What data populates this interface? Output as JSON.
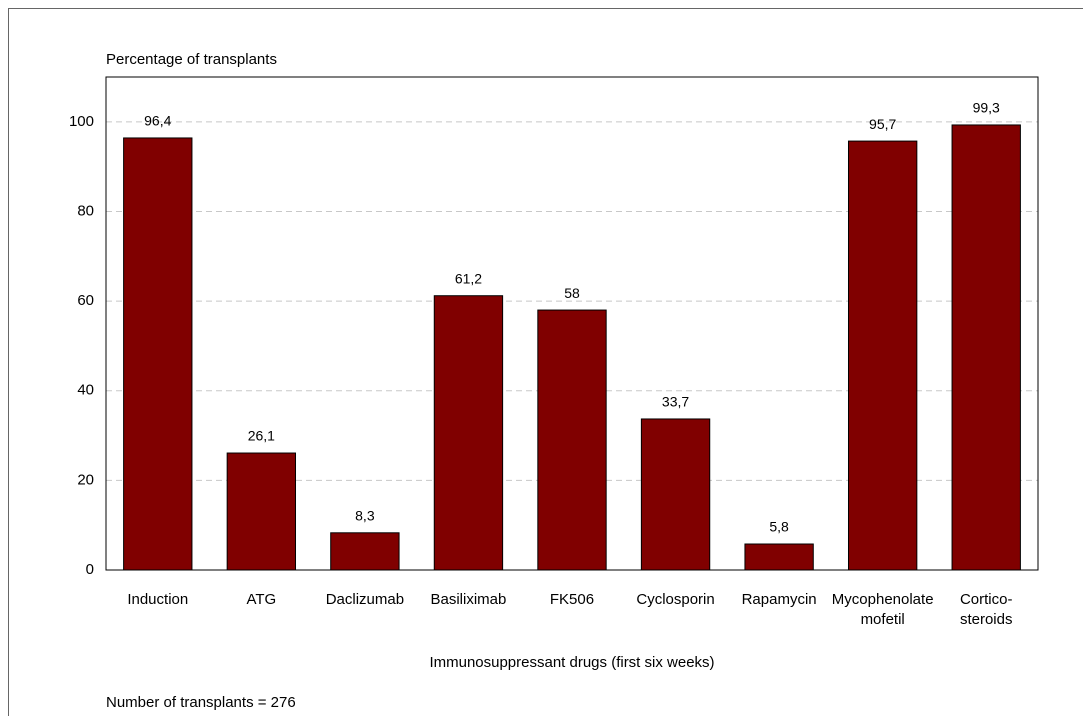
{
  "chart_data": {
    "type": "bar",
    "y_axis_label": "Percentage of transplants",
    "x_axis_label": "Immunosuppressant drugs (first six weeks)",
    "note": "Number of transplants = 276",
    "categories": [
      "Induction",
      "ATG",
      "Daclizumab",
      "Basiliximab",
      "FK506",
      "Cyclosporin",
      "Rapamycin",
      "Mycophenolate\nmofetil",
      "Cortico-\nsteroids"
    ],
    "values": [
      96.4,
      26.1,
      8.3,
      61.2,
      58,
      33.7,
      5.8,
      95.7,
      99.3
    ],
    "value_labels": [
      "96,4",
      "26,1",
      "8,3",
      "61,2",
      "58",
      "33,7",
      "5,8",
      "95,7",
      "99,3"
    ],
    "color": "#800000",
    "ylim": [
      0,
      110
    ],
    "yticks": [
      0,
      20,
      40,
      60,
      80,
      100
    ],
    "grid": true
  }
}
